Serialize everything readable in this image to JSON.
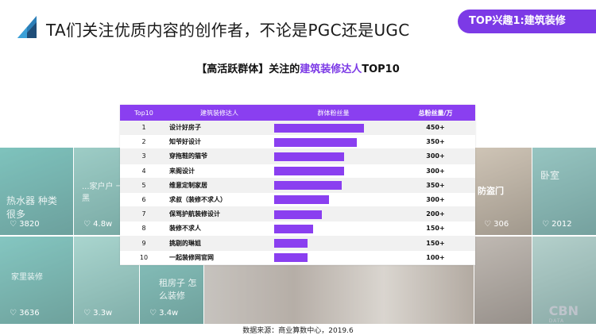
{
  "header": {
    "title": "TA们关注优质内容的创作者，不论是PGC还是UGC",
    "tag": "TOP兴趣1:建筑装修"
  },
  "subtitle": {
    "prefix": "【高活跃群体】关注的",
    "highlight": "建筑装修达人",
    "suffix": "TOP10"
  },
  "table": {
    "headers": [
      "Top10",
      "建筑装修达人",
      "群体粉丝量",
      "总粉丝量/万"
    ]
  },
  "chart_data": {
    "type": "table",
    "columns": [
      "Top10",
      "建筑装修达人",
      "群体粉丝量",
      "总粉丝量/万"
    ],
    "rows": [
      {
        "rank": "1",
        "name": "设计好房子",
        "group_fans": 0.76,
        "total": "450+"
      },
      {
        "rank": "2",
        "name": "知爷好设计",
        "group_fans": 0.7,
        "total": "350+"
      },
      {
        "rank": "3",
        "name": "穿拖鞋的猫爷",
        "group_fans": 0.59,
        "total": "300+"
      },
      {
        "rank": "4",
        "name": "来阁设计",
        "group_fans": 0.59,
        "total": "300+"
      },
      {
        "rank": "5",
        "name": "维意定制家居",
        "group_fans": 0.57,
        "total": "350+"
      },
      {
        "rank": "6",
        "name": "求叔（装修不求人）",
        "group_fans": 0.46,
        "total": "300+"
      },
      {
        "rank": "7",
        "name": "保骂护航装修设计",
        "group_fans": 0.4,
        "total": "200+"
      },
      {
        "rank": "8",
        "name": "装修不求人",
        "group_fans": 0.33,
        "total": "150+"
      },
      {
        "rank": "9",
        "name": "挑剔的琳姐",
        "group_fans": 0.28,
        "total": "150+"
      },
      {
        "rank": "10",
        "name": "一起装修网官网",
        "group_fans": 0.28,
        "total": "100+"
      }
    ]
  },
  "background": {
    "thumbs": [
      {
        "caption": "热水器 种类很多",
        "count": "3820"
      },
      {
        "caption": "...家户户 一小黑",
        "count": "4.8w"
      },
      {
        "caption": "防盗门",
        "count": "306"
      },
      {
        "caption": "卧室",
        "count": "2012"
      },
      {
        "caption": "家里装修",
        "count": "3636"
      },
      {
        "caption": "",
        "count": "3.3w"
      },
      {
        "caption": "租房子 怎么装修",
        "count": "3.4w"
      },
      {
        "caption": "",
        "count": ""
      }
    ],
    "colors": {
      "left": "#2f8f86",
      "mid": "#8f7a66",
      "right": "#4f8f8a",
      "accent": "#7c3ae6"
    }
  },
  "footer": {
    "source": "数据来源：商业算数中心，2019.6"
  }
}
